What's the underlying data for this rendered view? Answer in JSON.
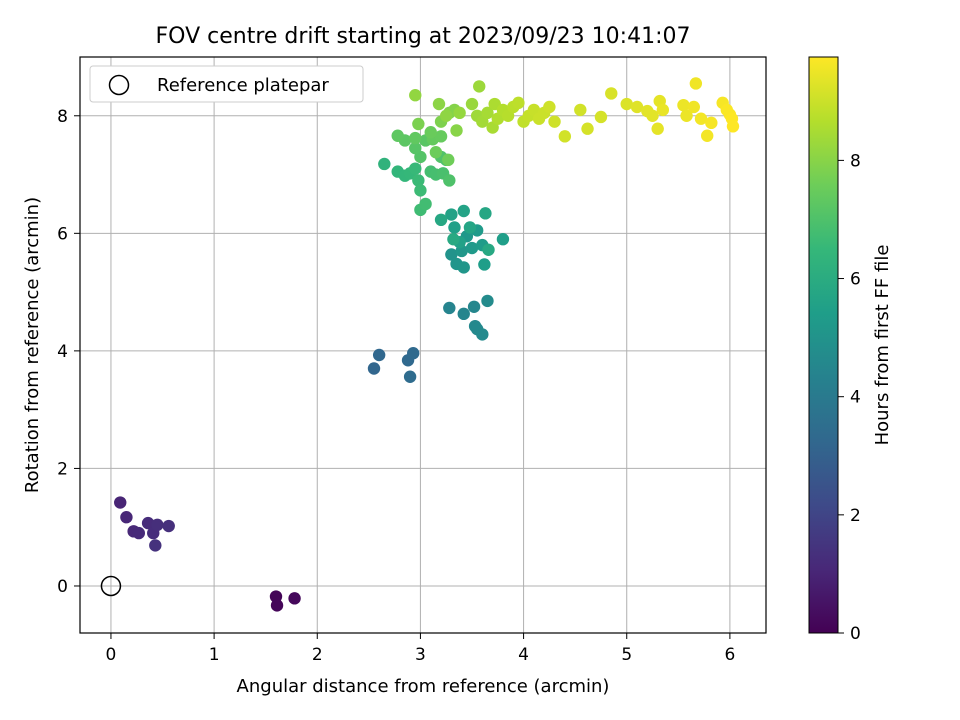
{
  "chart_data": {
    "type": "scatter",
    "title": "FOV centre drift starting at 2023/09/23 10:41:07",
    "xlabel": "Angular distance from reference (arcmin)",
    "ylabel": "Rotation from reference (arcmin)",
    "xlim": [
      -0.3,
      6.35
    ],
    "ylim": [
      -0.8,
      9.0
    ],
    "xticks": [
      0,
      1,
      2,
      3,
      4,
      5,
      6
    ],
    "yticks": [
      0,
      2,
      4,
      6,
      8
    ],
    "grid": true,
    "legend": {
      "placement": "top-left",
      "entries": [
        "Reference platepar"
      ]
    },
    "reference": {
      "x": 0,
      "y": 0
    },
    "colorbar": {
      "label": "Hours from first FF file",
      "colormap": "viridis",
      "range": [
        0,
        9.75
      ],
      "ticks": [
        0,
        2,
        4,
        6,
        8
      ]
    },
    "points": [
      {
        "x": 1.6,
        "y": -0.18,
        "c": 0.1
      },
      {
        "x": 1.61,
        "y": -0.33,
        "c": 0.15
      },
      {
        "x": 1.78,
        "y": -0.21,
        "c": 0.2
      },
      {
        "x": 0.09,
        "y": 1.42,
        "c": 1.0
      },
      {
        "x": 0.15,
        "y": 1.17,
        "c": 1.05
      },
      {
        "x": 0.22,
        "y": 0.93,
        "c": 1.1
      },
      {
        "x": 0.27,
        "y": 0.9,
        "c": 1.15
      },
      {
        "x": 0.36,
        "y": 1.07,
        "c": 1.2
      },
      {
        "x": 0.41,
        "y": 0.9,
        "c": 1.25
      },
      {
        "x": 0.45,
        "y": 1.04,
        "c": 1.3
      },
      {
        "x": 0.56,
        "y": 1.02,
        "c": 1.35
      },
      {
        "x": 0.43,
        "y": 0.69,
        "c": 1.4
      },
      {
        "x": 2.55,
        "y": 3.7,
        "c": 3.2
      },
      {
        "x": 2.6,
        "y": 3.93,
        "c": 3.25
      },
      {
        "x": 2.88,
        "y": 3.84,
        "c": 3.3
      },
      {
        "x": 2.93,
        "y": 3.96,
        "c": 3.35
      },
      {
        "x": 2.9,
        "y": 3.56,
        "c": 3.4
      },
      {
        "x": 3.28,
        "y": 4.73,
        "c": 4.4
      },
      {
        "x": 3.42,
        "y": 4.63,
        "c": 4.45
      },
      {
        "x": 3.52,
        "y": 4.75,
        "c": 4.5
      },
      {
        "x": 3.53,
        "y": 4.42,
        "c": 4.55
      },
      {
        "x": 3.55,
        "y": 4.37,
        "c": 4.6
      },
      {
        "x": 3.6,
        "y": 4.28,
        "c": 4.65
      },
      {
        "x": 3.65,
        "y": 4.85,
        "c": 4.7
      },
      {
        "x": 3.3,
        "y": 5.64,
        "c": 5.0
      },
      {
        "x": 3.35,
        "y": 5.48,
        "c": 5.05
      },
      {
        "x": 3.42,
        "y": 5.42,
        "c": 5.1
      },
      {
        "x": 3.4,
        "y": 5.7,
        "c": 5.15
      },
      {
        "x": 3.45,
        "y": 5.95,
        "c": 5.2
      },
      {
        "x": 3.5,
        "y": 5.75,
        "c": 5.25
      },
      {
        "x": 3.55,
        "y": 6.05,
        "c": 5.3
      },
      {
        "x": 3.6,
        "y": 5.8,
        "c": 5.35
      },
      {
        "x": 3.62,
        "y": 5.47,
        "c": 5.4
      },
      {
        "x": 3.8,
        "y": 5.9,
        "c": 5.45
      },
      {
        "x": 3.33,
        "y": 6.1,
        "c": 5.5
      },
      {
        "x": 3.38,
        "y": 5.85,
        "c": 5.55
      },
      {
        "x": 3.3,
        "y": 6.32,
        "c": 5.6
      },
      {
        "x": 3.42,
        "y": 6.38,
        "c": 5.65
      },
      {
        "x": 3.48,
        "y": 6.1,
        "c": 5.7
      },
      {
        "x": 3.63,
        "y": 6.34,
        "c": 5.75
      },
      {
        "x": 3.2,
        "y": 6.23,
        "c": 5.8
      },
      {
        "x": 3.66,
        "y": 5.72,
        "c": 5.85
      },
      {
        "x": 3.32,
        "y": 5.9,
        "c": 5.9
      },
      {
        "x": 2.65,
        "y": 7.18,
        "c": 6.3
      },
      {
        "x": 2.78,
        "y": 7.05,
        "c": 6.4
      },
      {
        "x": 2.85,
        "y": 6.98,
        "c": 6.45
      },
      {
        "x": 2.9,
        "y": 7.02,
        "c": 6.5
      },
      {
        "x": 2.95,
        "y": 7.1,
        "c": 6.55
      },
      {
        "x": 2.98,
        "y": 6.9,
        "c": 6.6
      },
      {
        "x": 3.0,
        "y": 6.73,
        "c": 6.65
      },
      {
        "x": 3.0,
        "y": 6.4,
        "c": 6.7
      },
      {
        "x": 3.05,
        "y": 6.5,
        "c": 6.75
      },
      {
        "x": 3.1,
        "y": 7.05,
        "c": 6.8
      },
      {
        "x": 3.15,
        "y": 7.0,
        "c": 6.85
      },
      {
        "x": 3.22,
        "y": 7.02,
        "c": 6.9
      },
      {
        "x": 3.25,
        "y": 7.25,
        "c": 6.95
      },
      {
        "x": 3.28,
        "y": 6.9,
        "c": 7.0
      },
      {
        "x": 3.2,
        "y": 7.3,
        "c": 7.05
      },
      {
        "x": 3.0,
        "y": 7.3,
        "c": 7.1
      },
      {
        "x": 2.95,
        "y": 7.45,
        "c": 7.15
      },
      {
        "x": 3.05,
        "y": 7.58,
        "c": 7.2
      },
      {
        "x": 2.85,
        "y": 7.58,
        "c": 7.25
      },
      {
        "x": 2.78,
        "y": 7.66,
        "c": 7.3
      },
      {
        "x": 2.95,
        "y": 7.62,
        "c": 7.35
      },
      {
        "x": 3.12,
        "y": 7.6,
        "c": 7.4
      },
      {
        "x": 3.2,
        "y": 7.65,
        "c": 7.45
      },
      {
        "x": 3.1,
        "y": 7.72,
        "c": 7.5
      },
      {
        "x": 3.15,
        "y": 7.38,
        "c": 7.55
      },
      {
        "x": 3.27,
        "y": 7.25,
        "c": 7.6
      },
      {
        "x": 2.98,
        "y": 7.86,
        "c": 7.8
      },
      {
        "x": 3.2,
        "y": 7.9,
        "c": 7.85
      },
      {
        "x": 3.28,
        "y": 8.05,
        "c": 7.9
      },
      {
        "x": 3.33,
        "y": 8.1,
        "c": 7.95
      },
      {
        "x": 3.35,
        "y": 7.75,
        "c": 8.0
      },
      {
        "x": 3.18,
        "y": 8.2,
        "c": 8.05
      },
      {
        "x": 3.25,
        "y": 8.0,
        "c": 8.1
      },
      {
        "x": 2.95,
        "y": 8.35,
        "c": 8.15
      },
      {
        "x": 3.38,
        "y": 8.05,
        "c": 8.2
      },
      {
        "x": 3.5,
        "y": 8.2,
        "c": 8.25
      },
      {
        "x": 3.57,
        "y": 8.5,
        "c": 8.3
      },
      {
        "x": 3.55,
        "y": 8.0,
        "c": 8.35
      },
      {
        "x": 3.6,
        "y": 7.9,
        "c": 8.4
      },
      {
        "x": 3.65,
        "y": 8.05,
        "c": 8.45
      },
      {
        "x": 3.7,
        "y": 7.8,
        "c": 8.5
      },
      {
        "x": 3.72,
        "y": 8.2,
        "c": 8.55
      },
      {
        "x": 3.75,
        "y": 7.95,
        "c": 8.6
      },
      {
        "x": 3.8,
        "y": 8.1,
        "c": 8.65
      },
      {
        "x": 3.85,
        "y": 8.0,
        "c": 8.7
      },
      {
        "x": 3.9,
        "y": 8.15,
        "c": 8.75
      },
      {
        "x": 3.95,
        "y": 8.22,
        "c": 8.8
      },
      {
        "x": 4.0,
        "y": 7.9,
        "c": 8.85
      },
      {
        "x": 4.05,
        "y": 8.0,
        "c": 8.9
      },
      {
        "x": 4.1,
        "y": 8.1,
        "c": 8.95
      },
      {
        "x": 4.15,
        "y": 7.95,
        "c": 9.0
      },
      {
        "x": 4.2,
        "y": 8.05,
        "c": 9.0
      },
      {
        "x": 4.25,
        "y": 8.15,
        "c": 9.05
      },
      {
        "x": 4.3,
        "y": 7.9,
        "c": 9.05
      },
      {
        "x": 4.4,
        "y": 7.65,
        "c": 9.1
      },
      {
        "x": 4.55,
        "y": 8.1,
        "c": 9.1
      },
      {
        "x": 4.62,
        "y": 7.78,
        "c": 9.15
      },
      {
        "x": 4.75,
        "y": 7.98,
        "c": 9.15
      },
      {
        "x": 4.85,
        "y": 8.38,
        "c": 9.2
      },
      {
        "x": 5.0,
        "y": 8.2,
        "c": 9.25
      },
      {
        "x": 5.1,
        "y": 8.15,
        "c": 9.3
      },
      {
        "x": 5.2,
        "y": 8.08,
        "c": 9.35
      },
      {
        "x": 5.25,
        "y": 8.0,
        "c": 9.35
      },
      {
        "x": 5.3,
        "y": 7.78,
        "c": 9.4
      },
      {
        "x": 5.32,
        "y": 8.25,
        "c": 9.4
      },
      {
        "x": 5.35,
        "y": 8.1,
        "c": 9.45
      },
      {
        "x": 5.55,
        "y": 8.18,
        "c": 9.5
      },
      {
        "x": 5.58,
        "y": 8.0,
        "c": 9.5
      },
      {
        "x": 5.65,
        "y": 8.15,
        "c": 9.55
      },
      {
        "x": 5.67,
        "y": 8.55,
        "c": 9.55
      },
      {
        "x": 5.72,
        "y": 7.95,
        "c": 9.6
      },
      {
        "x": 5.78,
        "y": 7.66,
        "c": 9.6
      },
      {
        "x": 5.82,
        "y": 7.88,
        "c": 9.65
      },
      {
        "x": 5.93,
        "y": 8.22,
        "c": 9.65
      },
      {
        "x": 5.97,
        "y": 8.1,
        "c": 9.7
      },
      {
        "x": 6.0,
        "y": 8.02,
        "c": 9.7
      },
      {
        "x": 6.02,
        "y": 7.95,
        "c": 9.75
      },
      {
        "x": 6.03,
        "y": 7.82,
        "c": 9.75
      }
    ]
  }
}
